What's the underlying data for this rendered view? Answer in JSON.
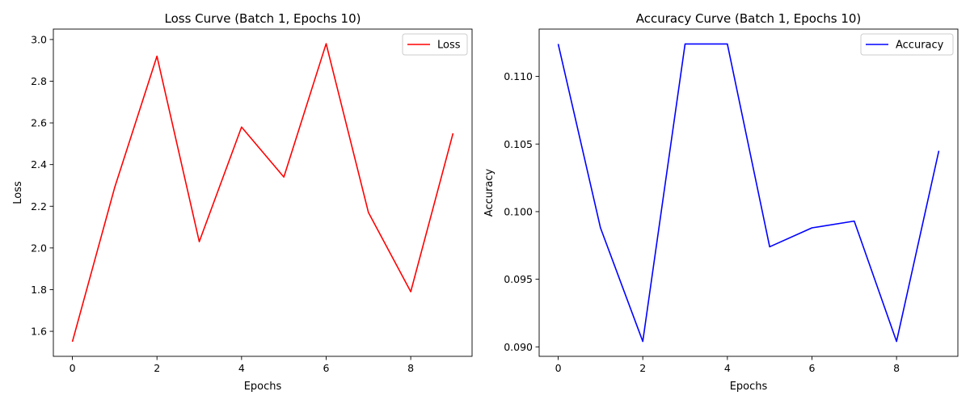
{
  "chart_data": [
    {
      "type": "line",
      "title": "Loss Curve (Batch 1, Epochs 10)",
      "xlabel": "Epochs",
      "ylabel": "Loss",
      "xlim": [
        -0.45,
        9.45
      ],
      "ylim": [
        1.48,
        3.05
      ],
      "xticks": [
        0,
        2,
        4,
        6,
        8
      ],
      "xtick_labels": [
        "0",
        "2",
        "4",
        "6",
        "8"
      ],
      "yticks": [
        1.6,
        1.8,
        2.0,
        2.2,
        2.4,
        2.6,
        2.8,
        3.0
      ],
      "ytick_labels": [
        "1.6",
        "1.8",
        "2.0",
        "2.2",
        "2.4",
        "2.6",
        "2.8",
        "3.0"
      ],
      "grid": false,
      "legend_position": "top-right",
      "series": [
        {
          "name": "Loss",
          "color": "#ff0000",
          "x": [
            0,
            1,
            2,
            3,
            4,
            5,
            6,
            7,
            8,
            9
          ],
          "y": [
            1.55,
            2.29,
            2.92,
            2.03,
            2.58,
            2.34,
            2.98,
            2.17,
            1.79,
            2.55
          ]
        }
      ]
    },
    {
      "type": "line",
      "title": "Accuracy Curve (Batch 1, Epochs 10)",
      "xlabel": "Epochs",
      "ylabel": "Accuracy",
      "xlim": [
        -0.45,
        9.45
      ],
      "ylim": [
        0.0893,
        0.1135
      ],
      "xticks": [
        0,
        2,
        4,
        6,
        8
      ],
      "xtick_labels": [
        "0",
        "2",
        "4",
        "6",
        "8"
      ],
      "yticks": [
        0.09,
        0.095,
        0.1,
        0.105,
        0.11
      ],
      "ytick_labels": [
        "0.090",
        "0.095",
        "0.100",
        "0.105",
        "0.110"
      ],
      "grid": false,
      "legend_position": "top-right",
      "series": [
        {
          "name": "Accuracy",
          "color": "#0000ff",
          "x": [
            0,
            1,
            2,
            3,
            4,
            5,
            6,
            7,
            8,
            9
          ],
          "y": [
            0.1124,
            0.0988,
            0.0904,
            0.1124,
            0.1124,
            0.0974,
            0.0988,
            0.0993,
            0.0904,
            0.1045
          ]
        }
      ]
    }
  ]
}
